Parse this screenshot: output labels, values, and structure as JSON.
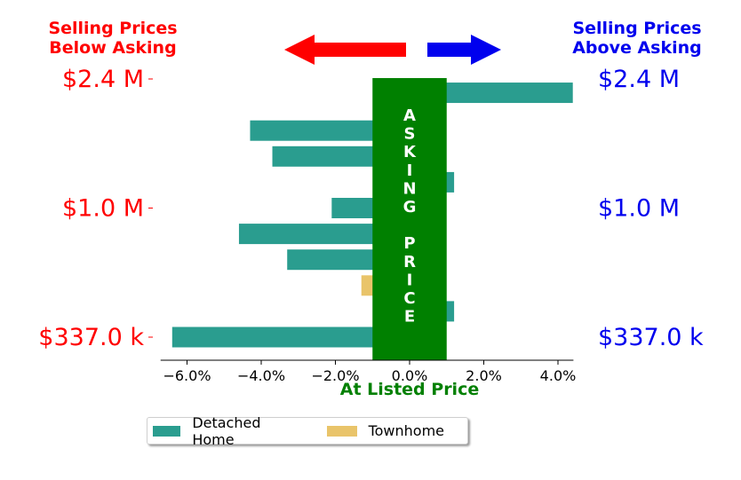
{
  "header": {
    "left_title_line1": "Selling Prices",
    "left_title_line2": "Below Asking",
    "right_title_line1": "Selling Prices",
    "right_title_line2": "Above Asking"
  },
  "center_band": {
    "letters": [
      "A",
      "S",
      "K",
      "I",
      "N",
      "G",
      "",
      "P",
      "R",
      "I",
      "C",
      "E"
    ],
    "color": "#008000"
  },
  "colors": {
    "below": "#ff0000",
    "above": "#0000ee",
    "detached": "#2a9d8f",
    "townhome": "#e9c46a"
  },
  "chart_data": {
    "type": "bar",
    "orientation": "horizontal",
    "xlabel": "At Listed Price",
    "xlim": [
      -7.0,
      4.8
    ],
    "xticks": [
      -6.0,
      -4.0,
      -2.0,
      0.0,
      2.0,
      4.0
    ],
    "xtick_labels": [
      "−6.0%",
      "−4.0%",
      "−2.0%",
      "0.0%",
      "2.0%",
      "4.0%"
    ],
    "ytick_labels_left": [
      "$2.4 M",
      "$1.0 M",
      "$337.0 k"
    ],
    "ytick_labels_right": [
      "$2.4 M",
      "$1.0 M",
      "$337.0 k"
    ],
    "ytick_rows": [
      0,
      5,
      10
    ],
    "bars": [
      {
        "row": 0.5,
        "value": 4.4,
        "series": "Detached Home"
      },
      {
        "row": 2,
        "value": -4.3,
        "series": "Detached Home"
      },
      {
        "row": 3,
        "value": -3.7,
        "series": "Detached Home"
      },
      {
        "row": 4,
        "value": 1.2,
        "series": "Detached Home"
      },
      {
        "row": 5,
        "value": -2.1,
        "series": "Detached Home"
      },
      {
        "row": 6,
        "value": -4.6,
        "series": "Detached Home"
      },
      {
        "row": 7,
        "value": -3.3,
        "series": "Detached Home"
      },
      {
        "row": 8,
        "value": -1.3,
        "series": "Townhome"
      },
      {
        "row": 9,
        "value": 1.2,
        "series": "Detached Home"
      },
      {
        "row": 10,
        "value": -6.4,
        "series": "Detached Home"
      }
    ],
    "legend": [
      {
        "name": "Detached Home",
        "color": "#2a9d8f"
      },
      {
        "name": "Townhome",
        "color": "#e9c46a"
      }
    ],
    "legend_placement": "bottom"
  }
}
